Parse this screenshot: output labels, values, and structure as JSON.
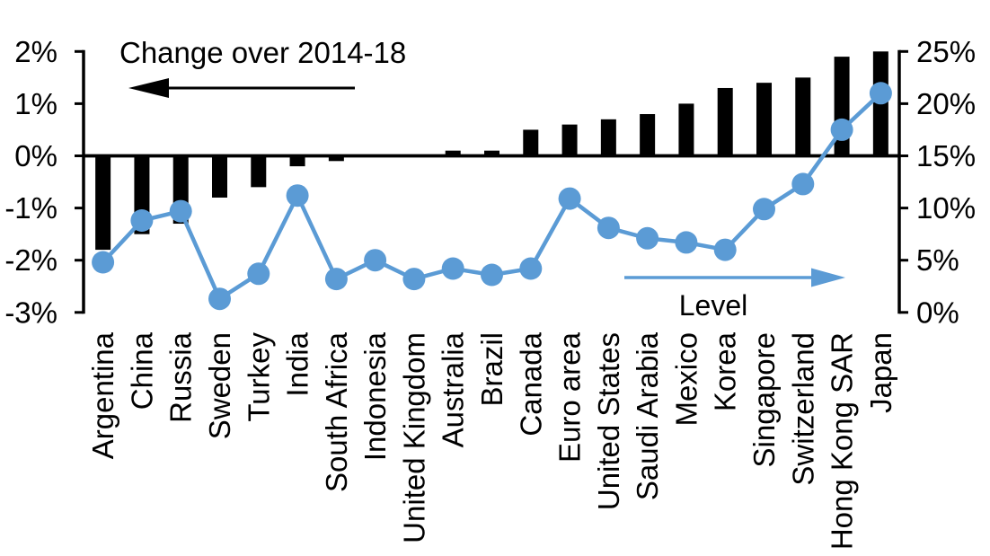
{
  "chart_data": {
    "type": "combo",
    "description": "Bar and line combo chart: black bars show change over 2014-18 (left axis, percentage points); blue line with markers shows level (right axis, percent).",
    "categories": [
      "Argentina",
      "China",
      "Russia",
      "Sweden",
      "Turkey",
      "India",
      "South Africa",
      "Indonesia",
      "United Kingdom",
      "Australia",
      "Brazil",
      "Canada",
      "Euro area",
      "United States",
      "Saudi Arabia",
      "Mexico",
      "Korea",
      "Singapore",
      "Switzerland",
      "Hong Kong SAR",
      "Japan"
    ],
    "series": [
      {
        "name": "Change over 2014-18",
        "type": "bar",
        "axis": "left",
        "color": "#000000",
        "values": [
          -1.8,
          -1.5,
          -1.3,
          -0.8,
          -0.6,
          -0.2,
          -0.1,
          0,
          0,
          0.1,
          0.1,
          0.5,
          0.6,
          0.7,
          0.8,
          1.0,
          1.3,
          1.4,
          1.5,
          1.9,
          2.0
        ]
      },
      {
        "name": "Level",
        "type": "line",
        "axis": "right",
        "color": "#5b9bd5",
        "values": [
          4.8,
          8.8,
          9.7,
          1.3,
          3.7,
          11.2,
          3.2,
          5.0,
          3.2,
          4.2,
          3.6,
          4.2,
          10.9,
          8.1,
          7.1,
          6.7,
          6.0,
          9.9,
          12.3,
          17.5,
          21.0
        ]
      }
    ],
    "left_axis": {
      "tick_labels": [
        "2%",
        "1%",
        "0%",
        "-1%",
        "-2%",
        "-3%"
      ],
      "tick_values": [
        2,
        1,
        0,
        -1,
        -2,
        -3
      ],
      "min": -3,
      "max": 2
    },
    "right_axis": {
      "tick_labels": [
        "25%",
        "20%",
        "15%",
        "10%",
        "5%",
        "0%"
      ],
      "tick_values": [
        25,
        20,
        15,
        10,
        5,
        0
      ],
      "min": 0,
      "max": 25
    },
    "annotations": [
      {
        "text": "Change over 2014-18",
        "arrow_direction": "left",
        "arrow_color": "#000000"
      },
      {
        "text": "Level",
        "arrow_direction": "right",
        "arrow_color": "#5b9bd5"
      }
    ],
    "grid": false,
    "legend_position": "in-plot annotations with arrows"
  },
  "colors": {
    "background": "#ffffff",
    "bar": "#000000",
    "line": "#5b9bd5",
    "text": "#000000"
  }
}
